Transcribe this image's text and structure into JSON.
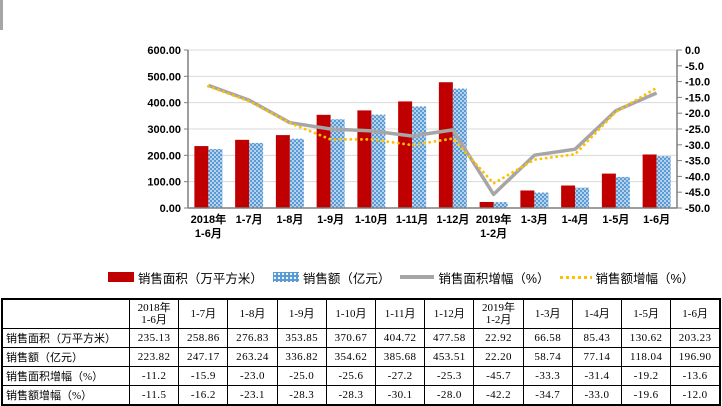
{
  "chart_data": {
    "type": "combo-bar-line",
    "categories": [
      [
        "2018年",
        "1-6月"
      ],
      [
        "1-7月"
      ],
      [
        "1-8月"
      ],
      [
        "1-9月"
      ],
      [
        "1-10月"
      ],
      [
        "1-11月"
      ],
      [
        "1-12月"
      ],
      [
        "2019年",
        "1-2月"
      ],
      [
        "1-3月"
      ],
      [
        "1-4月"
      ],
      [
        "1-5月"
      ],
      [
        "1-6月"
      ]
    ],
    "series": [
      {
        "name": "销售面积（万平方米）",
        "type": "bar",
        "color": "#C00000",
        "axis": "left",
        "values": [
          235.13,
          258.86,
          276.83,
          353.85,
          370.67,
          404.72,
          477.58,
          22.92,
          66.58,
          85.43,
          130.62,
          203.23
        ]
      },
      {
        "name": "销售额（亿元）",
        "type": "bar",
        "color": "#5B9BD5",
        "pattern": "white-dots",
        "axis": "left",
        "values": [
          223.82,
          247.17,
          263.24,
          336.82,
          354.62,
          385.68,
          453.51,
          22.2,
          58.74,
          77.14,
          118.04,
          196.9
        ]
      },
      {
        "name": "销售面积增幅（%）",
        "type": "line",
        "style": "solid",
        "color": "#A6A6A6",
        "axis": "right",
        "values": [
          -11.2,
          -15.9,
          -23.0,
          -25.0,
          -25.6,
          -27.2,
          -25.3,
          -45.7,
          -33.3,
          -31.4,
          -19.2,
          -13.6
        ]
      },
      {
        "name": "销售额增幅（%）",
        "type": "line",
        "style": "dotted",
        "color": "#FFC000",
        "axis": "right",
        "values": [
          -11.5,
          -16.2,
          -23.1,
          -28.3,
          -28.3,
          -30.1,
          -28.0,
          -42.2,
          -34.7,
          -33.0,
          -19.6,
          -12.0
        ]
      }
    ],
    "left_axis": {
      "min": 0,
      "max": 600,
      "ticks": [
        "0.00",
        "100.00",
        "200.00",
        "300.00",
        "400.00",
        "500.00",
        "600.00"
      ]
    },
    "right_axis": {
      "min": -50,
      "max": 0,
      "ticks": [
        "0.0",
        "-5.0",
        "-10.0",
        "-15.0",
        "-20.0",
        "-25.0",
        "-30.0",
        "-35.0",
        "-40.0",
        "-45.0",
        "-50.0"
      ]
    },
    "gridlines": true,
    "legend_position": "bottom",
    "colors": {
      "gridline": "#D9D9D9",
      "axis_line": "#7F7F7F",
      "text": "#000000"
    }
  },
  "table": {
    "col_headers": [
      "",
      "2018年\n1-6月",
      "1-7月",
      "1-8月",
      "1-9月",
      "1-10月",
      "1-11月",
      "1-12月",
      "2019年\n1-2月",
      "1-3月",
      "1-4月",
      "1-5月",
      "1-6月"
    ],
    "rows": [
      {
        "label": "销售面积（万平方米）",
        "values": [
          "235.13",
          "258.86",
          "276.83",
          "353.85",
          "370.67",
          "404.72",
          "477.58",
          "22.92",
          "66.58",
          "85.43",
          "130.62",
          "203.23"
        ]
      },
      {
        "label": "销售额（亿元）",
        "values": [
          "223.82",
          "247.17",
          "263.24",
          "336.82",
          "354.62",
          "385.68",
          "453.51",
          "22.20",
          "58.74",
          "77.14",
          "118.04",
          "196.90"
        ]
      },
      {
        "label": "销售面积增幅（%）",
        "values": [
          "-11.2",
          "-15.9",
          "-23.0",
          "-25.0",
          "-25.6",
          "-27.2",
          "-25.3",
          "-45.7",
          "-33.3",
          "-31.4",
          "-19.2",
          "-13.6"
        ]
      },
      {
        "label": "销售额增幅（%）",
        "values": [
          "-11.5",
          "-16.2",
          "-23.1",
          "-28.3",
          "-28.3",
          "-30.1",
          "-28.0",
          "-42.2",
          "-34.7",
          "-33.0",
          "-19.6",
          "-12.0"
        ]
      }
    ]
  }
}
